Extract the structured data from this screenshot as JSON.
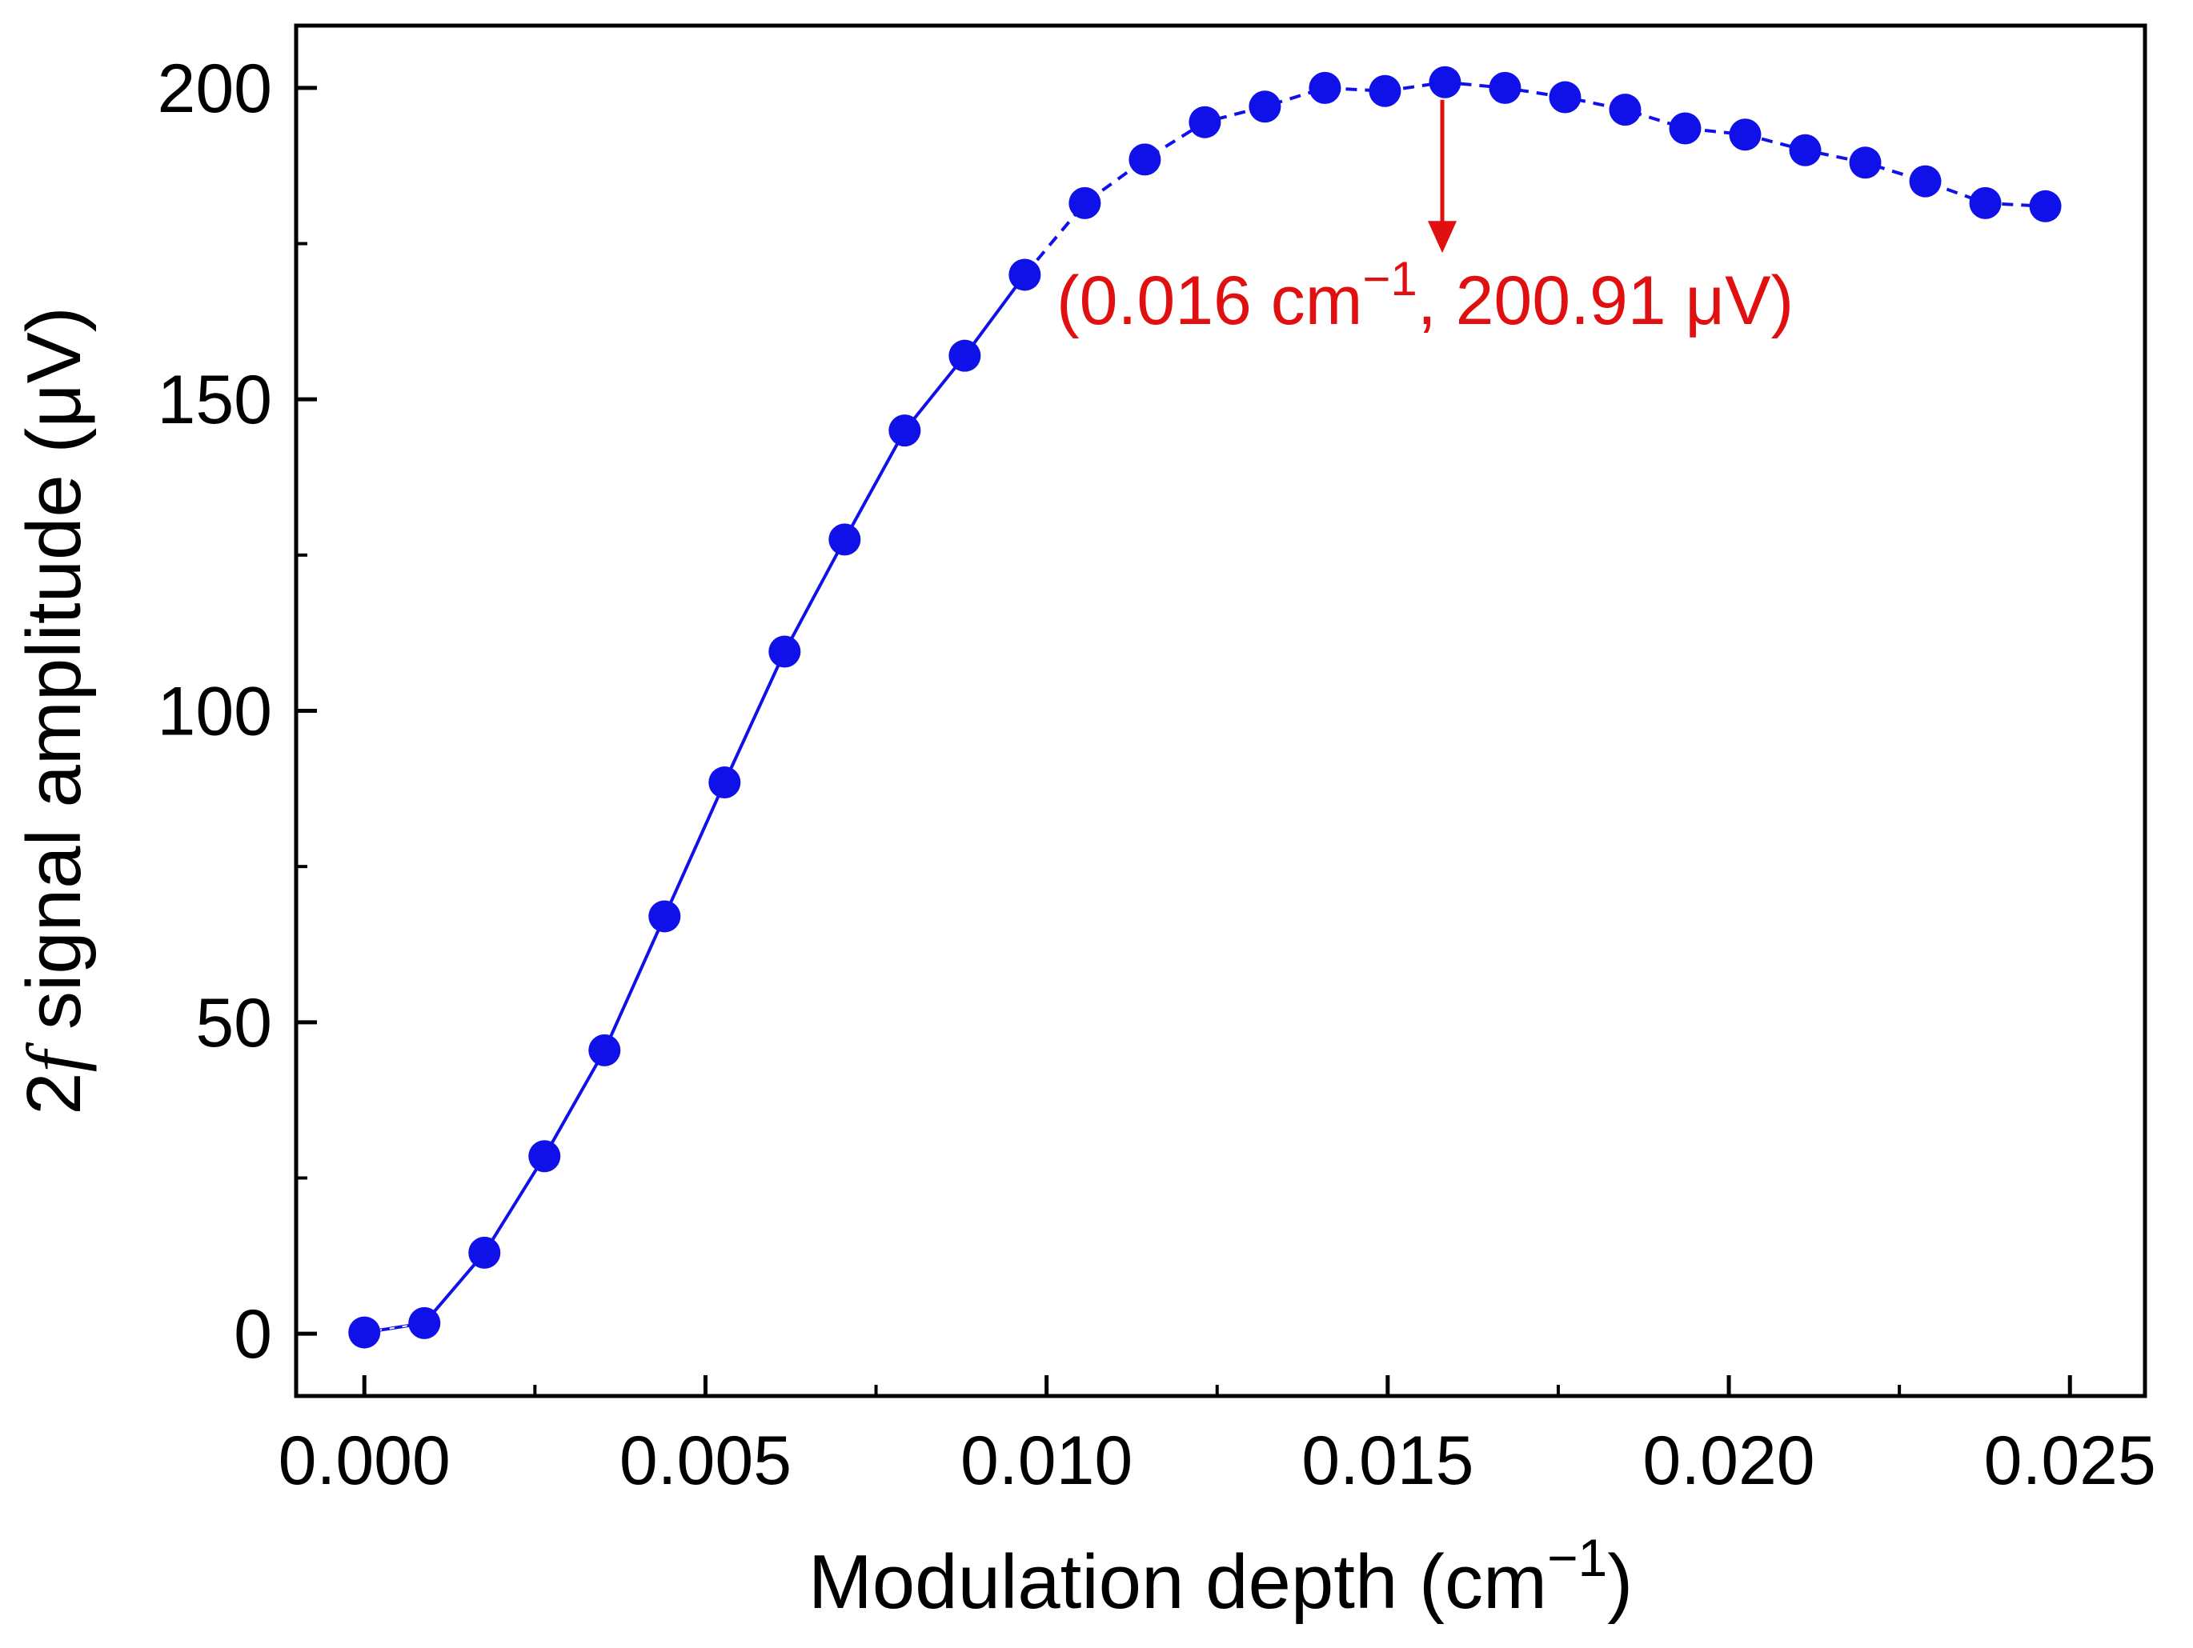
{
  "colors": {
    "series": "#1010e8",
    "annotation": "#e01010",
    "axis": "#000000"
  },
  "chart_data": {
    "type": "scatter",
    "line": true,
    "line_style": "solid, dashed at the plateau",
    "xlabel_main": "Modulation depth (cm",
    "xlabel_sup": "−1",
    "xlabel_end": ")",
    "ylabel_prefix": "2",
    "ylabel_italic": "f",
    "ylabel_main": " signal amplitude (μV)",
    "xlim": [
      -0.001,
      0.0261
    ],
    "ylim": [
      -10,
      210
    ],
    "x_ticks": [
      0.0,
      0.005,
      0.01,
      0.015,
      0.02,
      0.025
    ],
    "x_tick_labels": [
      "0.000",
      "0.005",
      "0.010",
      "0.015",
      "0.020",
      "0.025"
    ],
    "y_ticks": [
      0,
      50,
      100,
      150,
      200
    ],
    "y_tick_labels": [
      "0",
      "50",
      "100",
      "150",
      "200"
    ],
    "series": [
      {
        "name": "2f signal amplitude",
        "x": [
          0.0,
          0.00088,
          0.00176,
          0.00264,
          0.00352,
          0.0044,
          0.00528,
          0.00616,
          0.00704,
          0.00792,
          0.0088,
          0.00968,
          0.01056,
          0.01144,
          0.01232,
          0.0132,
          0.01408,
          0.01496,
          0.01584,
          0.01672,
          0.0176,
          0.01848,
          0.01936,
          0.02024,
          0.02112,
          0.022,
          0.02288,
          0.02376,
          0.02464
        ],
        "y": [
          0.2,
          1.7,
          13,
          28.5,
          45.5,
          67,
          88.5,
          109.5,
          127.5,
          145,
          157,
          170,
          181.5,
          188.5,
          194.5,
          197,
          200,
          199.5,
          200.91,
          200,
          198.5,
          196.5,
          193.5,
          192.5,
          190,
          188,
          185,
          181.5,
          181
        ]
      }
    ],
    "annotation": {
      "x": 0.0158,
      "y": 200.91,
      "arrow_to_y": 174,
      "text_pre": "(0.016 cm",
      "text_sup": "−1",
      "text_post": ", 200.91 μV)"
    }
  }
}
